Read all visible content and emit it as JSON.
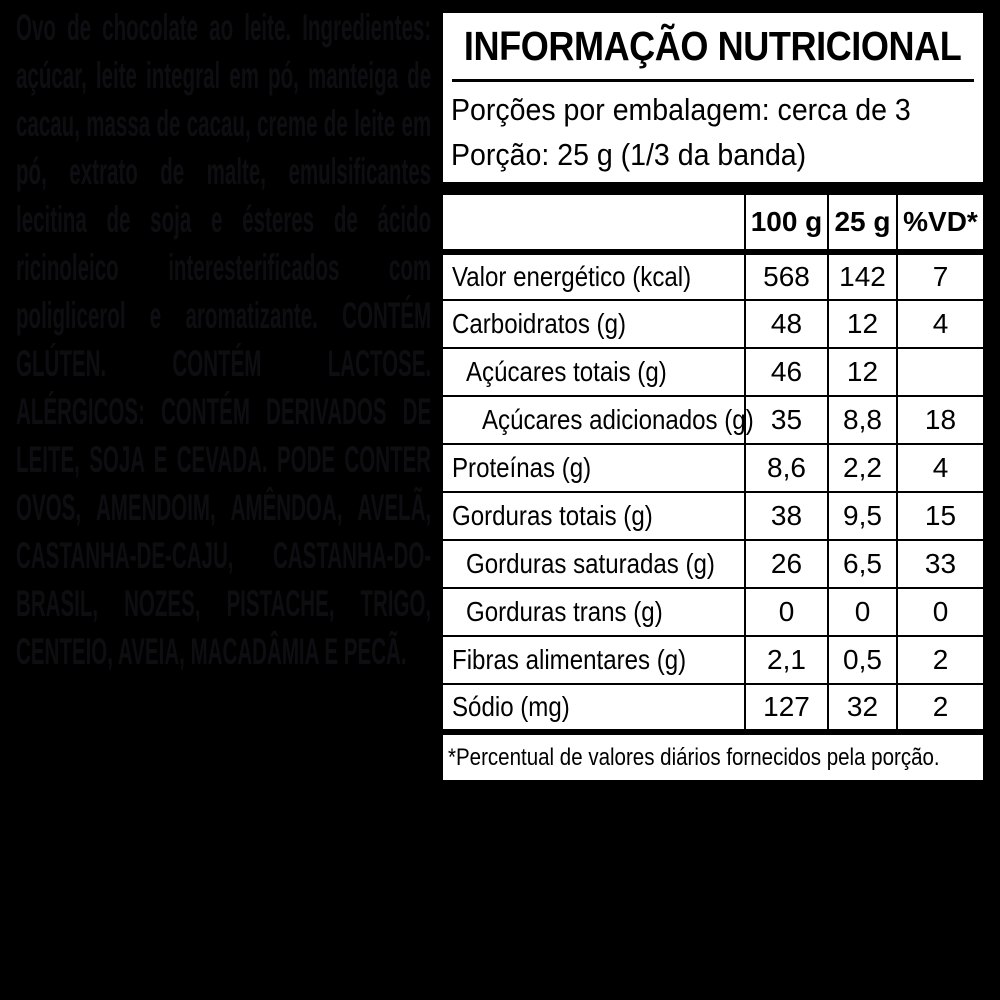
{
  "accent_colors": {
    "background": "#000000",
    "panel_background": "#ffffff",
    "panel_text": "#000000",
    "hidden_text": "#0e0e12"
  },
  "ingredients": {
    "description": "Ovo de chocolate ao leite. Ingredientes: açúcar, leite integral em pó, manteiga de cacau, massa de cacau, creme de leite em pó, extrato de malte, emulsificantes lecitina de soja e ésteres de ácido ricinoleico interesterificados com poliglicerol e aromatizante.",
    "allergens": "CONTÉM GLÚTEN. CONTÉM LACTOSE. ALÉRGICOS: CONTÉM DERIVADOS DE LEITE, SOJA E CEVADA. PODE CONTER OVOS, AMENDOIM, AMÊNDOA, AVELÃ, CASTANHA-DE-CAJU, CASTANHA-DO-BRASIL, NOZES, PISTACHE, TRIGO, CENTEIO, AVEIA, MACADÂMIA E PECÃ."
  },
  "nutrition": {
    "title": "INFORMAÇÃO NUTRICIONAL",
    "servings_line": "Porções por embalagem: cerca de 3",
    "portion_line": "Porção: 25 g (1/3 da banda)",
    "columns": [
      "100 g",
      "25 g",
      "%VD*"
    ],
    "rows": [
      {
        "label": "Valor energético (kcal)",
        "indent": 0,
        "per100": "568",
        "per25": "142",
        "vd": "7"
      },
      {
        "label": "Carboidratos (g)",
        "indent": 0,
        "per100": "48",
        "per25": "12",
        "vd": "4"
      },
      {
        "label": "Açúcares totais (g)",
        "indent": 1,
        "per100": "46",
        "per25": "12",
        "vd": ""
      },
      {
        "label": "Açúcares adicionados (g)",
        "indent": 2,
        "per100": "35",
        "per25": "8,8",
        "vd": "18"
      },
      {
        "label": "Proteínas (g)",
        "indent": 0,
        "per100": "8,6",
        "per25": "2,2",
        "vd": "4"
      },
      {
        "label": "Gorduras totais (g)",
        "indent": 0,
        "per100": "38",
        "per25": "9,5",
        "vd": "15"
      },
      {
        "label": "Gorduras saturadas (g)",
        "indent": 1,
        "per100": "26",
        "per25": "6,5",
        "vd": "33"
      },
      {
        "label": "Gorduras trans (g)",
        "indent": 1,
        "per100": "0",
        "per25": "0",
        "vd": "0"
      },
      {
        "label": "Fibras alimentares (g)",
        "indent": 0,
        "per100": "2,1",
        "per25": "0,5",
        "vd": "2"
      },
      {
        "label": "Sódio (mg)",
        "indent": 0,
        "per100": "127",
        "per25": "32",
        "vd": "2"
      }
    ],
    "footnote": "*Percentual de valores diários fornecidos pela porção."
  }
}
